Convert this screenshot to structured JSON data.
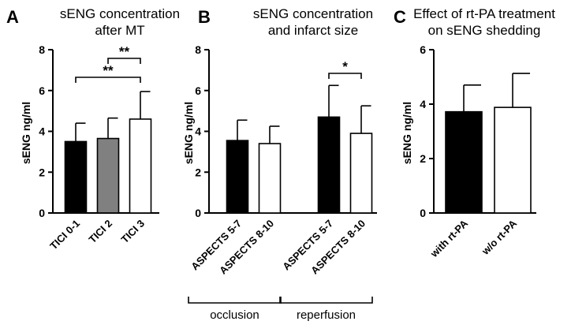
{
  "chart_data": [
    {
      "panel": "A",
      "type": "bar",
      "title": [
        "sENG concentration",
        "after MT"
      ],
      "ylabel": "sENG ng/ml",
      "ylim": [
        0,
        8
      ],
      "yticks": [
        0,
        2,
        4,
        6,
        8
      ],
      "categories": [
        "TICI 0-1",
        "TICI 2",
        "TICI 3"
      ],
      "values": [
        3.5,
        3.65,
        4.6
      ],
      "errors": [
        0.9,
        1.0,
        1.35
      ],
      "colors": [
        "#000000",
        "#808080",
        "#ffffff"
      ],
      "significance": [
        {
          "from": 1,
          "to": 2,
          "label": "**"
        },
        {
          "from": 0,
          "to": 2,
          "label": "**"
        }
      ]
    },
    {
      "panel": "B",
      "type": "bar",
      "title": [
        "sENG concentration",
        "and infarct size"
      ],
      "ylabel": "sENG ng/ml",
      "ylim": [
        0,
        8
      ],
      "yticks": [
        0,
        2,
        4,
        6,
        8
      ],
      "categories": [
        "ASPECTS 5-7",
        "ASPECTS 8-10",
        "ASPECTS 5-7",
        "ASPECTS 8-10"
      ],
      "values": [
        3.55,
        3.4,
        4.7,
        3.9
      ],
      "errors": [
        1.0,
        0.85,
        1.55,
        1.35
      ],
      "colors": [
        "#000000",
        "#ffffff",
        "#000000",
        "#ffffff"
      ],
      "groups": [
        {
          "label": "occlusion",
          "from": 0,
          "to": 1
        },
        {
          "label": "reperfusion",
          "from": 2,
          "to": 3
        }
      ],
      "significance": [
        {
          "from": 2,
          "to": 3,
          "label": "*"
        }
      ]
    },
    {
      "panel": "C",
      "type": "bar",
      "title": [
        "Effect of rt-PA treatment",
        "on sENG shedding"
      ],
      "ylabel": "sENG ng/ml",
      "ylim": [
        0,
        6
      ],
      "yticks": [
        0,
        2,
        4,
        6
      ],
      "categories": [
        "with rt-PA",
        "w/o rt-PA"
      ],
      "values": [
        3.72,
        3.88
      ],
      "errors": [
        0.98,
        1.25
      ],
      "colors": [
        "#000000",
        "#ffffff"
      ],
      "significance": []
    }
  ]
}
